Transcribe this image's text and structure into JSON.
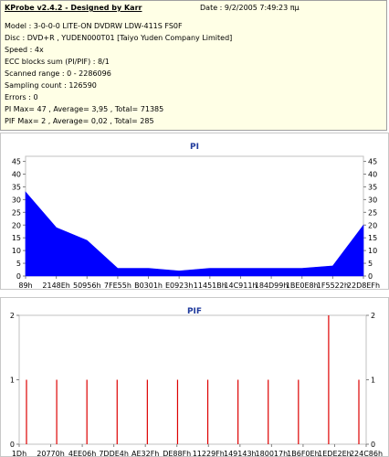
{
  "header": {
    "title": "KProbe v2.4.2 - Designed by Karr",
    "date": "Date : 9/2/2005 7:49:23 πμ"
  },
  "info_lines": [
    "Model : 3-0-0-0 LITE-ON DVDRW LDW-411S   FS0F",
    "Disc : DVD+R , YUDEN000T01 [Taiyo Yuden Company Limited]",
    "Speed : 4x",
    "ECC blocks sum (PI/PIF) : 8/1",
    "Scanned range : 0 - 2286096",
    "Sampling count : 126590",
    "Errors : 0",
    "PI Max= 47 , Average= 3,95 , Total= 71385",
    "PIF Max= 2 , Average= 0,02 , Total= 285"
  ],
  "pi_chart": {
    "title": "PI",
    "y_ticks": [
      "45",
      "40",
      "35",
      "30",
      "25",
      "20",
      "15",
      "10",
      "5",
      "0"
    ],
    "x_labels": [
      "89h",
      "2148Eh",
      "50956h",
      "7FE55h",
      "B0301h",
      "E0923h",
      "11451Bh",
      "14C911h",
      "184D99h",
      "1BE0E8h",
      "1F5522h",
      "22D8EFh"
    ],
    "color": "#0000ff"
  },
  "pif_chart": {
    "title": "PIF",
    "y_ticks": [
      "2",
      "1",
      "0"
    ],
    "x_labels": [
      "1Dh",
      "20770h",
      "4EE06h",
      "7DDE4h",
      "AE32Fh",
      "DE88Fh",
      "11229Fh",
      "149143h",
      "180017h",
      "1B6F0Eh",
      "1EDE2Eh",
      "224C86h"
    ],
    "color": "#dd0000"
  },
  "chart_data": [
    {
      "type": "area",
      "title": "PI",
      "ylim": [
        0,
        47
      ],
      "x": [
        "89h",
        "2148Eh",
        "50956h",
        "7FE55h",
        "B0301h",
        "E0923h",
        "11451Bh",
        "14C911h",
        "184D99h",
        "1BE0E8h",
        "1F5522h",
        "22D8EFh"
      ],
      "values": [
        33,
        19,
        14,
        3,
        3,
        2,
        3,
        3,
        3,
        3,
        4,
        20
      ],
      "y_max": 47
    },
    {
      "type": "bar",
      "title": "PIF",
      "ylim": [
        0,
        2
      ],
      "x": [
        "1Dh",
        "20770h",
        "4EE06h",
        "7DDE4h",
        "AE32Fh",
        "DE88Fh",
        "11229Fh",
        "149143h",
        "180017h",
        "1B6F0Eh",
        "1EDE2Eh",
        "224C86h"
      ],
      "values": [
        1,
        1,
        1,
        1,
        1,
        1,
        1,
        1,
        1,
        1,
        2,
        1
      ],
      "y_max": 2
    }
  ]
}
